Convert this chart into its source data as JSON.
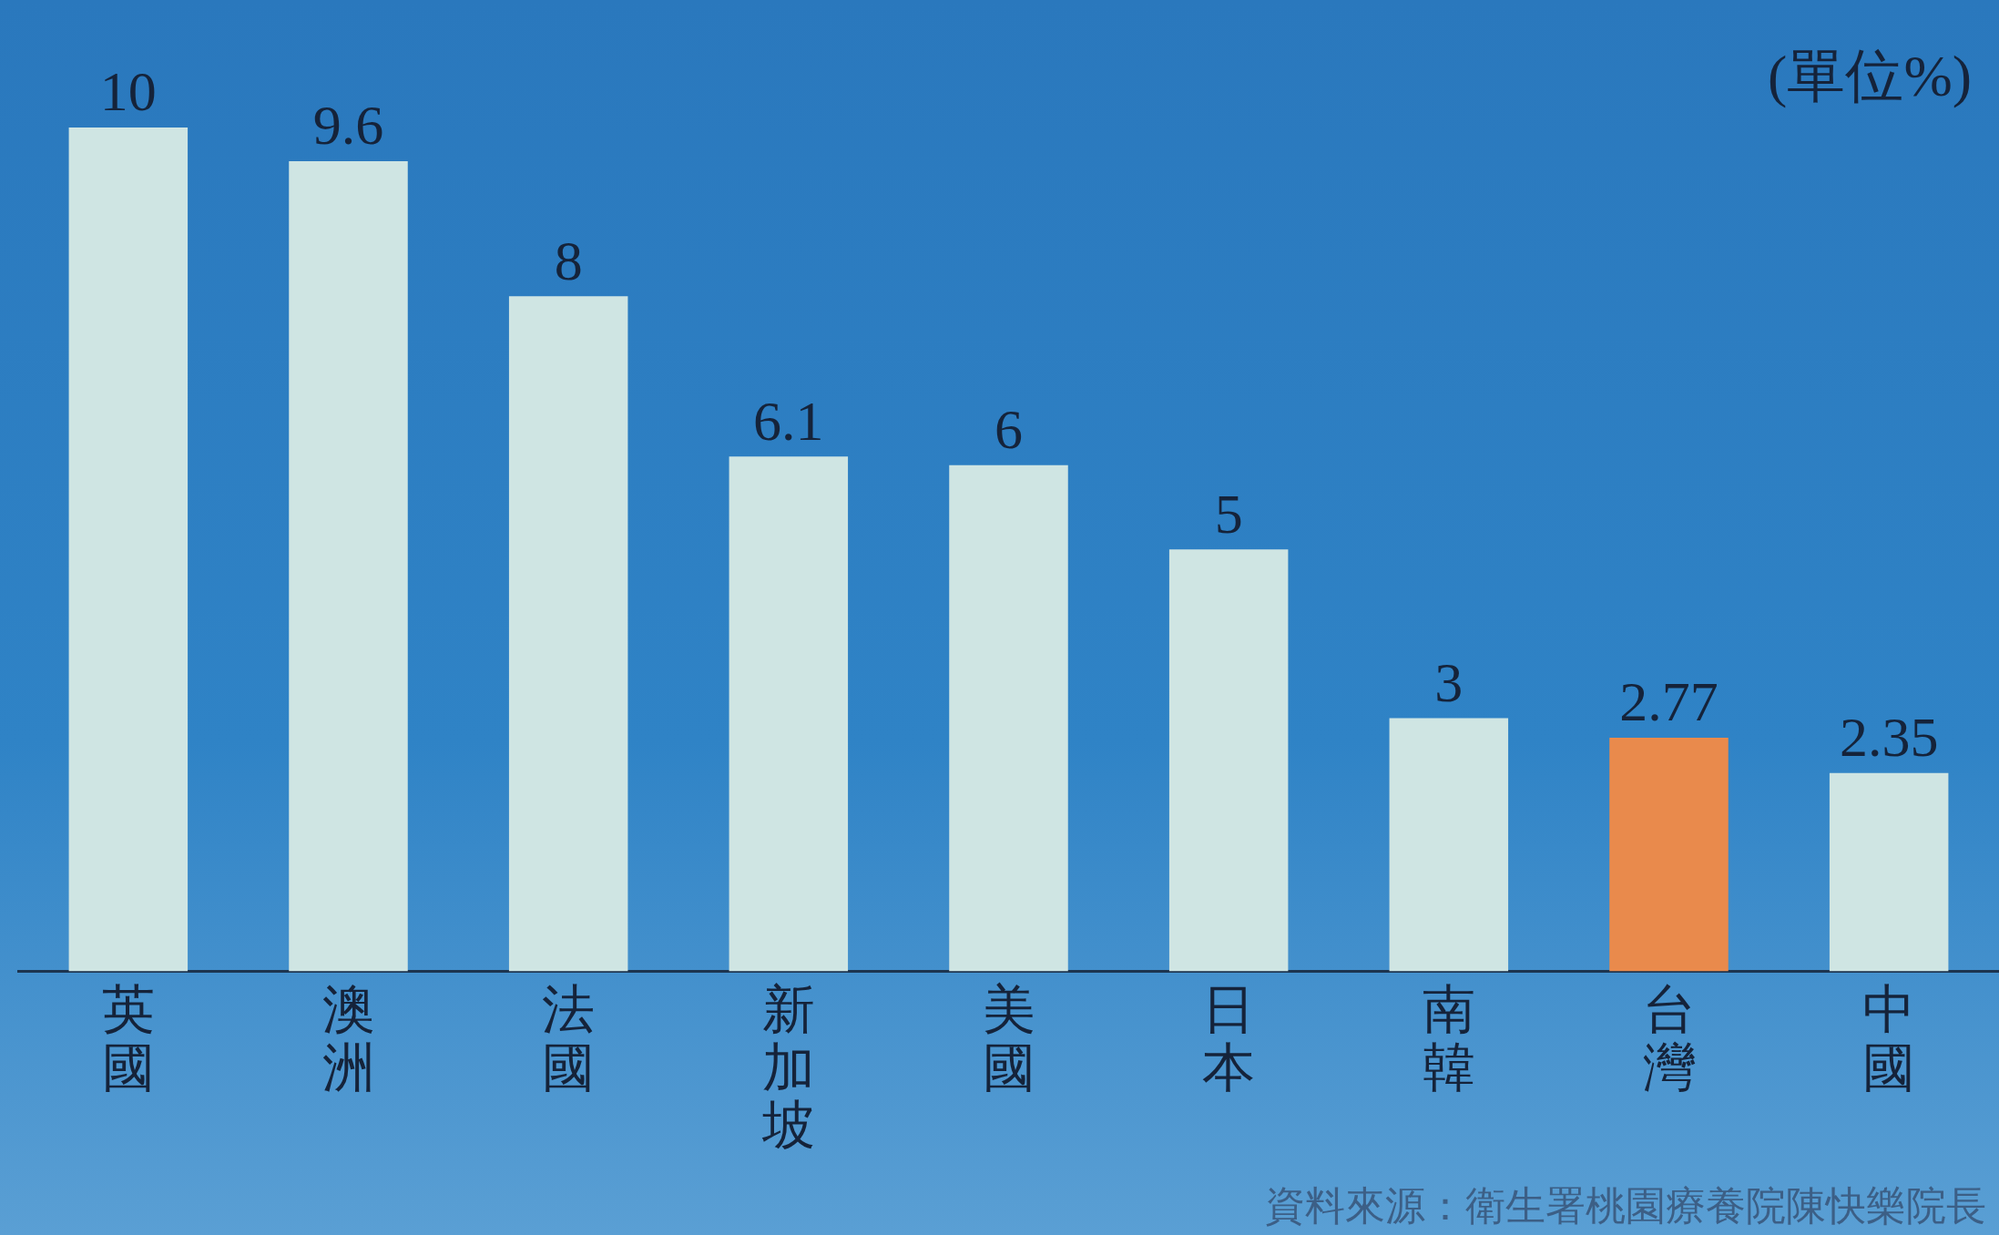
{
  "chart_data": {
    "type": "bar",
    "categories": [
      "英國",
      "澳洲",
      "法國",
      "新加坡",
      "美國",
      "日本",
      "南韓",
      "台灣",
      "中國"
    ],
    "values": [
      10,
      9.6,
      8,
      6.1,
      6,
      5,
      3,
      2.77,
      2.35
    ],
    "colors": [
      "#cfe5e3",
      "#cfe5e3",
      "#cfe5e3",
      "#cfe5e3",
      "#cfe5e3",
      "#cfe5e3",
      "#cfe5e3",
      "#e98a4c",
      "#cfe5e3"
    ],
    "data_labels": true,
    "annotations": [
      "(單位%)",
      "資料來源：衛生署桃園療養院陳快樂院長"
    ]
  }
}
